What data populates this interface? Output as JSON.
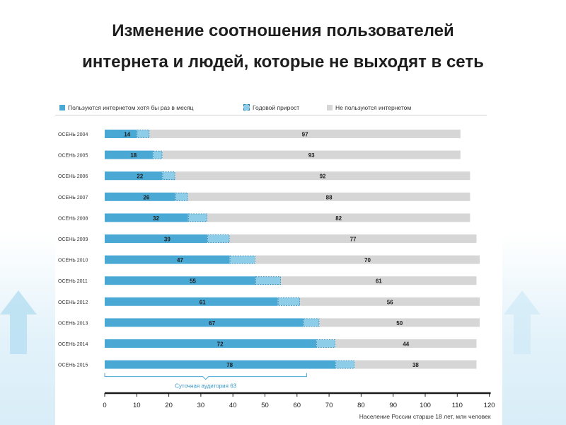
{
  "slide": {
    "title_line1": "Изменение соотношения пользователей",
    "title_line2": "интернета и людей, которые не выходят в сеть"
  },
  "colors": {
    "users": "#4aa8d4",
    "growth": "#8ecde8",
    "growth_border": "#2a7fae",
    "nonusers": "#d6d6d6",
    "axis": "#1a1a1a"
  },
  "chart_data": {
    "type": "bar",
    "orientation": "horizontal",
    "stacked": true,
    "categories": [
      "ОСЕНЬ 2004",
      "ОСЕНЬ 2005",
      "ОСЕНЬ 2006",
      "ОСЕНЬ 2007",
      "ОСЕНЬ 2008",
      "ОСЕНЬ 2009",
      "ОСЕНЬ 2010",
      "ОСЕНЬ 2011",
      "ОСЕНЬ 2012",
      "ОСЕНЬ 2013",
      "ОСЕНЬ 2014",
      "ОСЕНЬ 2015"
    ],
    "series": [
      {
        "name": "Пользуются интернетом хотя бы раз в месяц",
        "values": [
          14,
          18,
          22,
          26,
          32,
          39,
          47,
          55,
          61,
          67,
          72,
          78
        ]
      },
      {
        "name": "Годовой прирост",
        "values": [
          4,
          3,
          4,
          4,
          6,
          7,
          8,
          8,
          7,
          5,
          6,
          6
        ]
      },
      {
        "name": "Не пользуются интернетом",
        "values": [
          97,
          93,
          92,
          88,
          82,
          77,
          70,
          61,
          56,
          50,
          44,
          38
        ]
      }
    ],
    "xlim": [
      0,
      120
    ],
    "xticks": [
      0,
      10,
      20,
      30,
      40,
      50,
      60,
      70,
      80,
      90,
      100,
      110,
      120
    ],
    "xlabel": "Население России старше 18 лет, млн человек",
    "legend_position": "top",
    "annotation": {
      "text": "Суточная аудитория 63",
      "range": [
        0,
        63
      ]
    }
  }
}
